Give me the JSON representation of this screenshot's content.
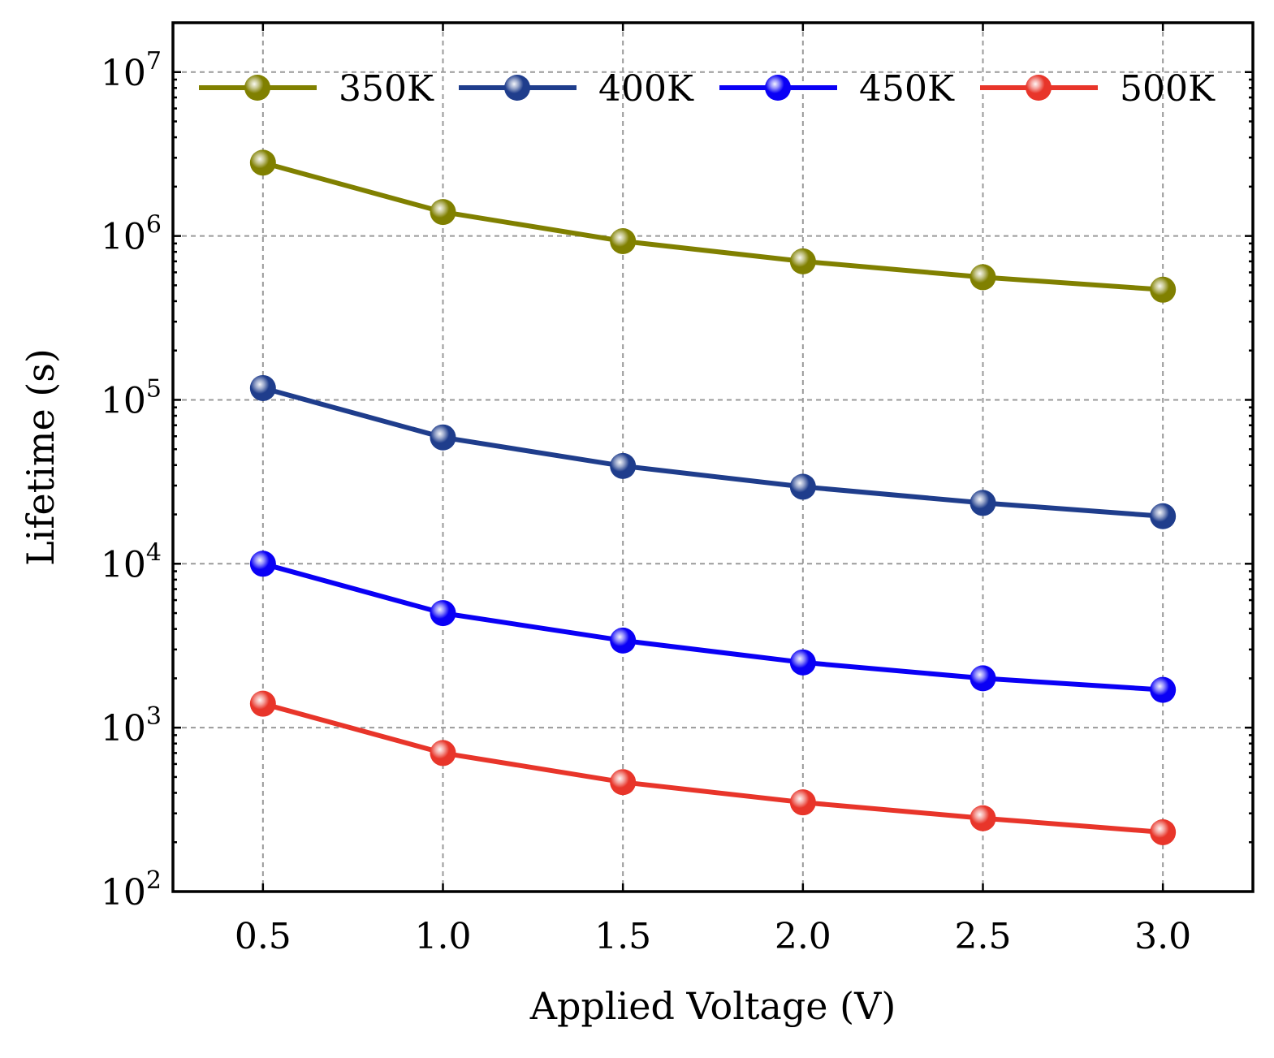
{
  "chart_data": {
    "type": "line",
    "title": "",
    "xlabel": "Applied Voltage (V)",
    "ylabel": "Lifetime (s)",
    "yscale": "log",
    "xlim": [
      0.25,
      3.25
    ],
    "ylim": [
      100,
      20000000
    ],
    "x": [
      0.5,
      1.0,
      1.5,
      2.0,
      2.5,
      3.0
    ],
    "x_tick_labels": [
      "0.5",
      "1.0",
      "1.5",
      "2.0",
      "2.5",
      "3.0"
    ],
    "y_ticks": [
      {
        "base": "10",
        "exp": "2",
        "value": 100
      },
      {
        "base": "10",
        "exp": "3",
        "value": 1000
      },
      {
        "base": "10",
        "exp": "4",
        "value": 10000
      },
      {
        "base": "10",
        "exp": "5",
        "value": 100000
      },
      {
        "base": "10",
        "exp": "6",
        "value": 1000000
      },
      {
        "base": "10",
        "exp": "7",
        "value": 10000000
      }
    ],
    "grid": true,
    "legend_position": "top",
    "series": [
      {
        "name": "350K",
        "color": "#808000",
        "values": [
          2800000,
          1400000,
          930000,
          700000,
          560000,
          470000
        ]
      },
      {
        "name": "400K",
        "color": "#1f3d8c",
        "values": [
          118000,
          59000,
          39500,
          29500,
          23500,
          19500
        ]
      },
      {
        "name": "450K",
        "color": "#0a00f5",
        "values": [
          10000,
          5000,
          3400,
          2500,
          2000,
          1700
        ]
      },
      {
        "name": "500K",
        "color": "#e8352a",
        "values": [
          1400,
          700,
          465,
          350,
          280,
          230
        ]
      }
    ]
  }
}
